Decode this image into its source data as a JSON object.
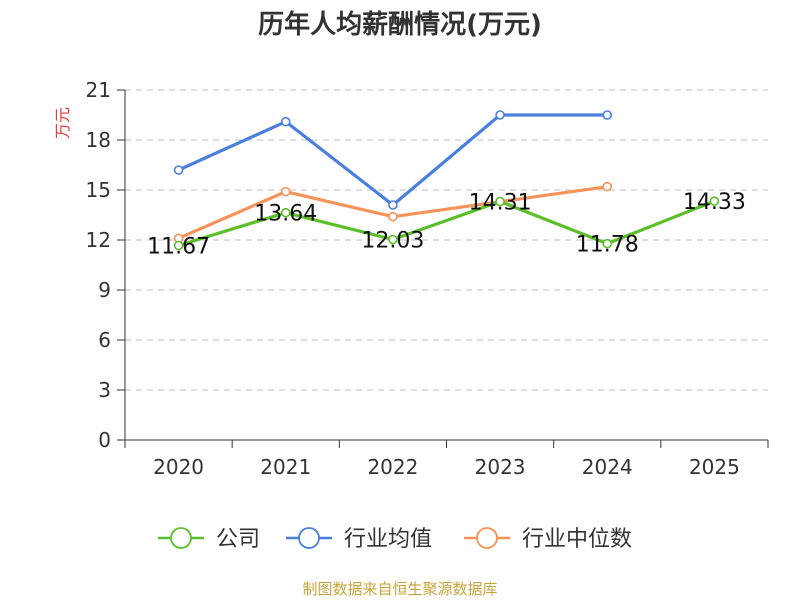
{
  "chart_data": {
    "type": "line",
    "title": "历年人均薪酬情况(万元)",
    "ylabel": "万元",
    "xlabel": "",
    "categories": [
      "2020",
      "2021",
      "2022",
      "2023",
      "2024",
      "2025"
    ],
    "ylim": [
      0,
      21
    ],
    "yticks": [
      0,
      3,
      6,
      9,
      12,
      15,
      18,
      21
    ],
    "ytick_labels": [
      "0",
      "3",
      "6",
      "9",
      "12",
      "15",
      "18",
      "21"
    ],
    "grid": true,
    "legend_position": "bottom",
    "series": [
      {
        "name": "公司",
        "color": "#5cbf2a",
        "values": [
          11.67,
          13.64,
          12.03,
          14.31,
          11.78,
          14.33
        ],
        "labels": [
          "11.67",
          "13.64",
          "12.03",
          "14.31",
          "11.78",
          "14.33"
        ]
      },
      {
        "name": "行业均值",
        "color": "#4a7fde",
        "values": [
          16.2,
          19.1,
          14.1,
          19.5,
          19.5,
          null
        ]
      },
      {
        "name": "行业中位数",
        "color": "#f5935a",
        "values": [
          12.1,
          14.9,
          13.4,
          14.3,
          15.2,
          null
        ]
      }
    ],
    "source": "制图数据来自恒生聚源数据库",
    "colors": {
      "ylabel": "#e23b3b",
      "source": "#c9a33a",
      "grid": "#cccccc",
      "axis": "#333333"
    }
  }
}
